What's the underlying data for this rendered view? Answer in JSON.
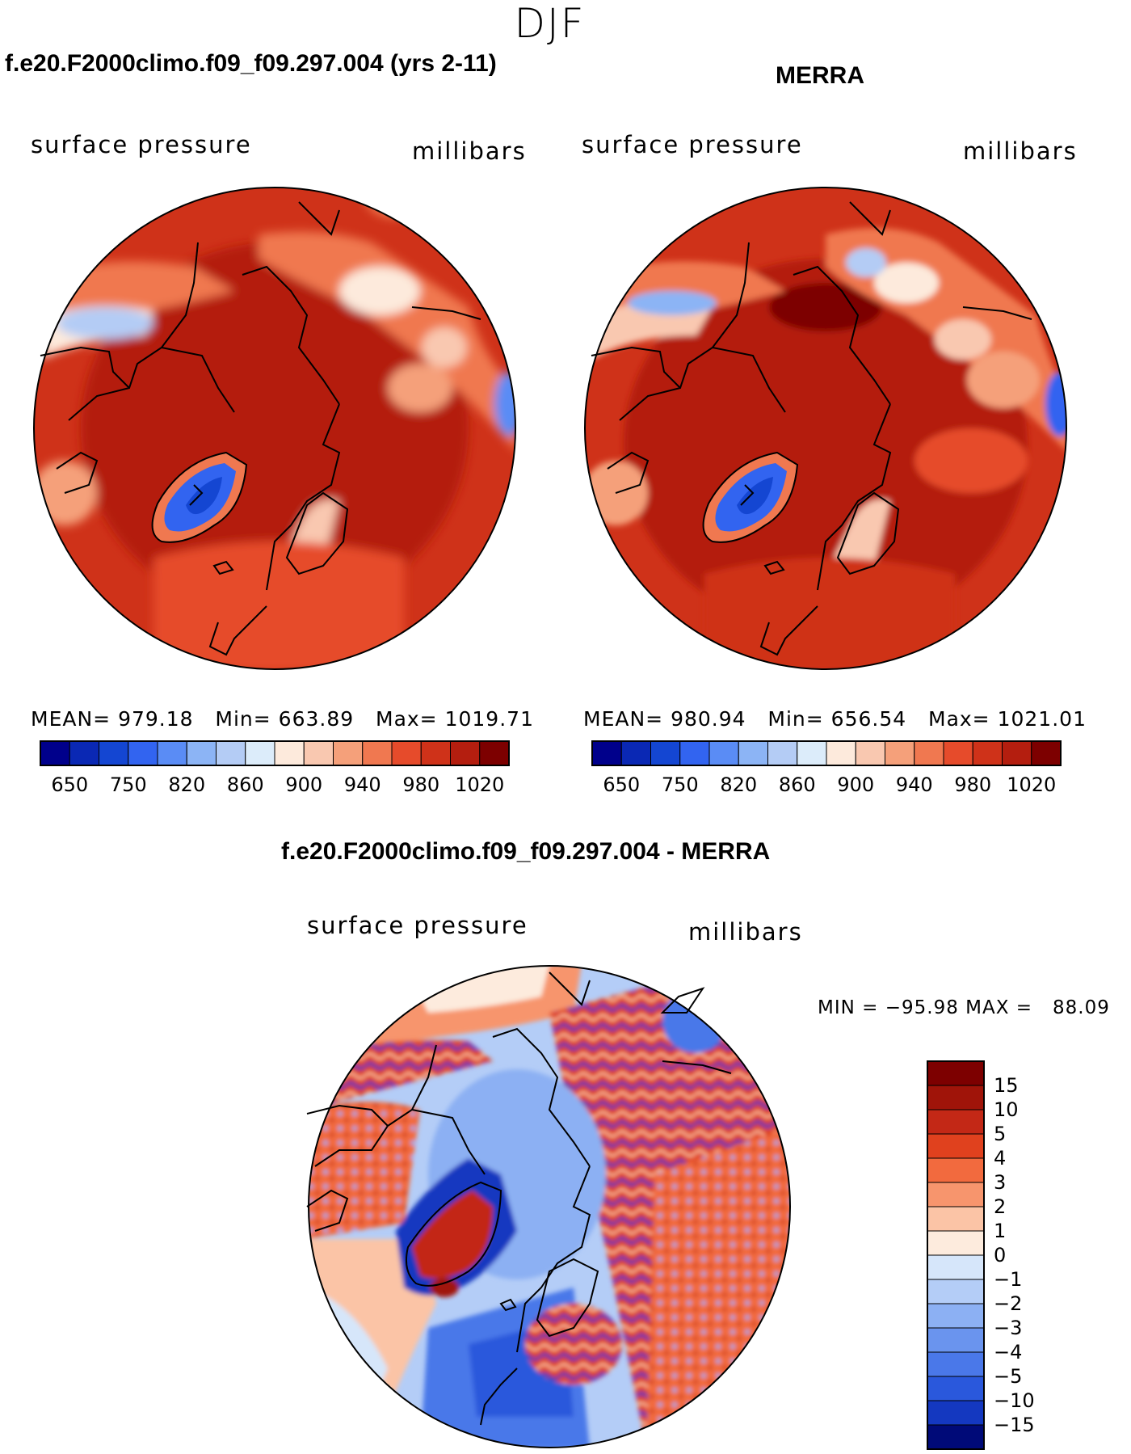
{
  "season": "DJF",
  "panels": [
    {
      "case_title": "f.e20.F2000climo.f09_f09.297.004 (yrs 2-11)",
      "variable": "surface pressure",
      "units": "millibars",
      "mean_label": "MEAN=",
      "mean": "979.18",
      "min_label": "Min=",
      "min": "663.89",
      "max_label": "Max=",
      "max": "1019.71"
    },
    {
      "case_title": "MERRA",
      "variable": "surface pressure",
      "units": "millibars",
      "mean_label": "MEAN=",
      "mean": "980.94",
      "min_label": "Min=",
      "min": "656.54",
      "max_label": "Max=",
      "max": "1021.01"
    }
  ],
  "colorbar": {
    "colors": [
      "#00008b",
      "#0a28b4",
      "#1446d2",
      "#3264f0",
      "#5a8cf5",
      "#8cb4f5",
      "#b4ccf5",
      "#dcecfa",
      "#fdeadc",
      "#f9c8b0",
      "#f5a07a",
      "#f07850",
      "#e64b2b",
      "#cf3219",
      "#b41e0f",
      "#7d0000"
    ],
    "tick_labels": [
      "650",
      "750",
      "820",
      "860",
      "900",
      "940",
      "980",
      "1020"
    ]
  },
  "diff": {
    "title": "f.e20.F2000climo.f09_f09.297.004 - MERRA",
    "variable": "surface pressure",
    "units": "millibars",
    "minmax_text": "MIN = −95.98 MAX =   88.09",
    "colors": [
      "#7d0000",
      "#a01409",
      "#c32816",
      "#e0411e",
      "#f26a3e",
      "#f7956d",
      "#fbc4a6",
      "#fdebdd",
      "#d6e6fa",
      "#b4cdf7",
      "#8cb0f3",
      "#6a94ee",
      "#4a78e9",
      "#2a58dc",
      "#1438c0",
      "#000a78"
    ],
    "tick_labels": [
      "15",
      "10",
      "5",
      "4",
      "3",
      "2",
      "1",
      "0",
      "−1",
      "−2",
      "−3",
      "−4",
      "−5",
      "−10",
      "−15"
    ]
  },
  "chart_data": [
    {
      "type": "heatmap",
      "projection": "north polar stereographic",
      "title": "f.e20.F2000climo.f09_f09.297.004 (yrs 2-11)",
      "variable": "surface pressure",
      "units": "millibars",
      "mean": 979.18,
      "min": 663.89,
      "max": 1019.71,
      "levels": [
        650,
        750,
        820,
        860,
        900,
        940,
        980,
        1020
      ]
    },
    {
      "type": "heatmap",
      "projection": "north polar stereographic",
      "title": "MERRA",
      "variable": "surface pressure",
      "units": "millibars",
      "mean": 980.94,
      "min": 656.54,
      "max": 1021.01,
      "levels": [
        650,
        750,
        820,
        860,
        900,
        940,
        980,
        1020
      ]
    },
    {
      "type": "heatmap",
      "projection": "north polar stereographic",
      "title": "f.e20.F2000climo.f09_f09.297.004 - MERRA",
      "variable": "surface pressure",
      "units": "millibars",
      "min": -95.98,
      "max": 88.09,
      "levels": [
        15,
        10,
        5,
        4,
        3,
        2,
        1,
        0,
        -1,
        -2,
        -3,
        -4,
        -5,
        -10,
        -15
      ]
    }
  ]
}
